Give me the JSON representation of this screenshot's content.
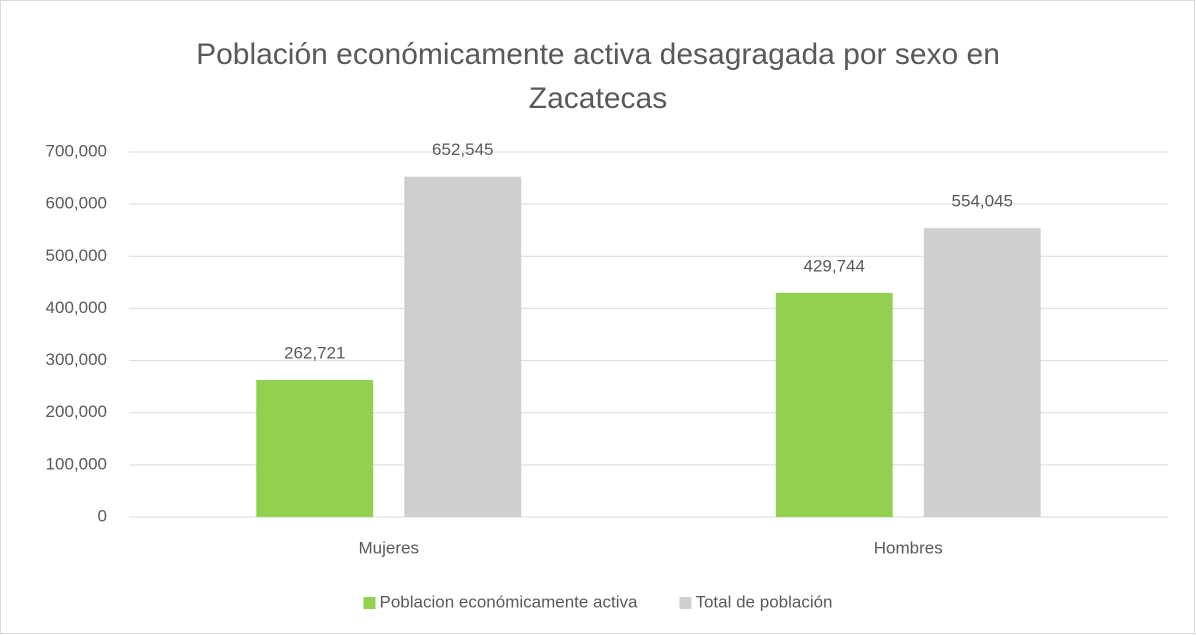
{
  "chart_data": {
    "type": "bar",
    "title": [
      "Población económicamente activa desagragada por sexo en",
      "Zacatecas"
    ],
    "categories": [
      "Mujeres",
      "Hombres"
    ],
    "series": [
      {
        "name": "Poblacion económicamente activa",
        "color": "#92d050",
        "values": [
          262721,
          429744
        ],
        "value_labels": [
          "262,721",
          "429,744"
        ]
      },
      {
        "name": "Total de población",
        "color": "#d0cece",
        "values": [
          652545,
          554045
        ],
        "value_labels": [
          "652,545",
          "554,045"
        ]
      }
    ],
    "ylim": [
      0,
      700000
    ],
    "yticks": [
      0,
      {
        "value": 100000,
        "label": "100,000"
      },
      {
        "value": 200000,
        "label": "200,000"
      },
      {
        "value": 300000,
        "label": "300,000"
      },
      {
        "value": 400000,
        "label": "400,000"
      },
      {
        "value": 500000,
        "label": "500,000"
      },
      {
        "value": 600000,
        "label": "600,000"
      },
      {
        "value": 700000,
        "label": "700,000"
      }
    ],
    "grid": true,
    "legend": "bottom"
  }
}
